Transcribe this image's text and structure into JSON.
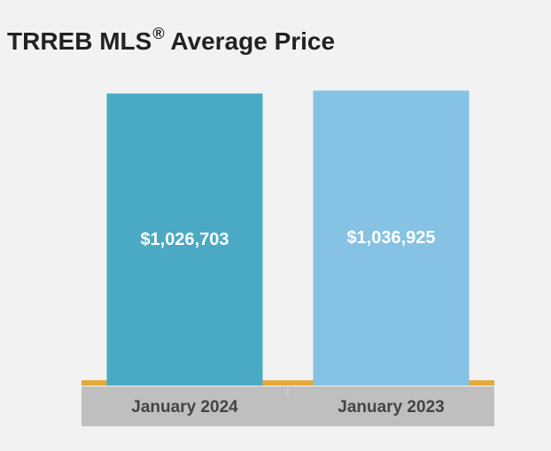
{
  "title": {
    "main": "TRREB MLS",
    "superscript": "®",
    "rest": " Average Price"
  },
  "chart_data": {
    "type": "bar",
    "categories": [
      "January 2024",
      "January 2023"
    ],
    "values": [
      1026703,
      1036925
    ],
    "data_labels": [
      "$1,026,703",
      "$1,036,925"
    ],
    "bar_colors": [
      "#4baac3",
      "#85c2e3"
    ],
    "baseline_color": "#e3a93a",
    "category_band_color": "#bfbfbf",
    "label_color": "#ffffff",
    "category_label_color": "#444444",
    "ylim": [
      0,
      1060000
    ],
    "grid": false,
    "legend": "none"
  }
}
